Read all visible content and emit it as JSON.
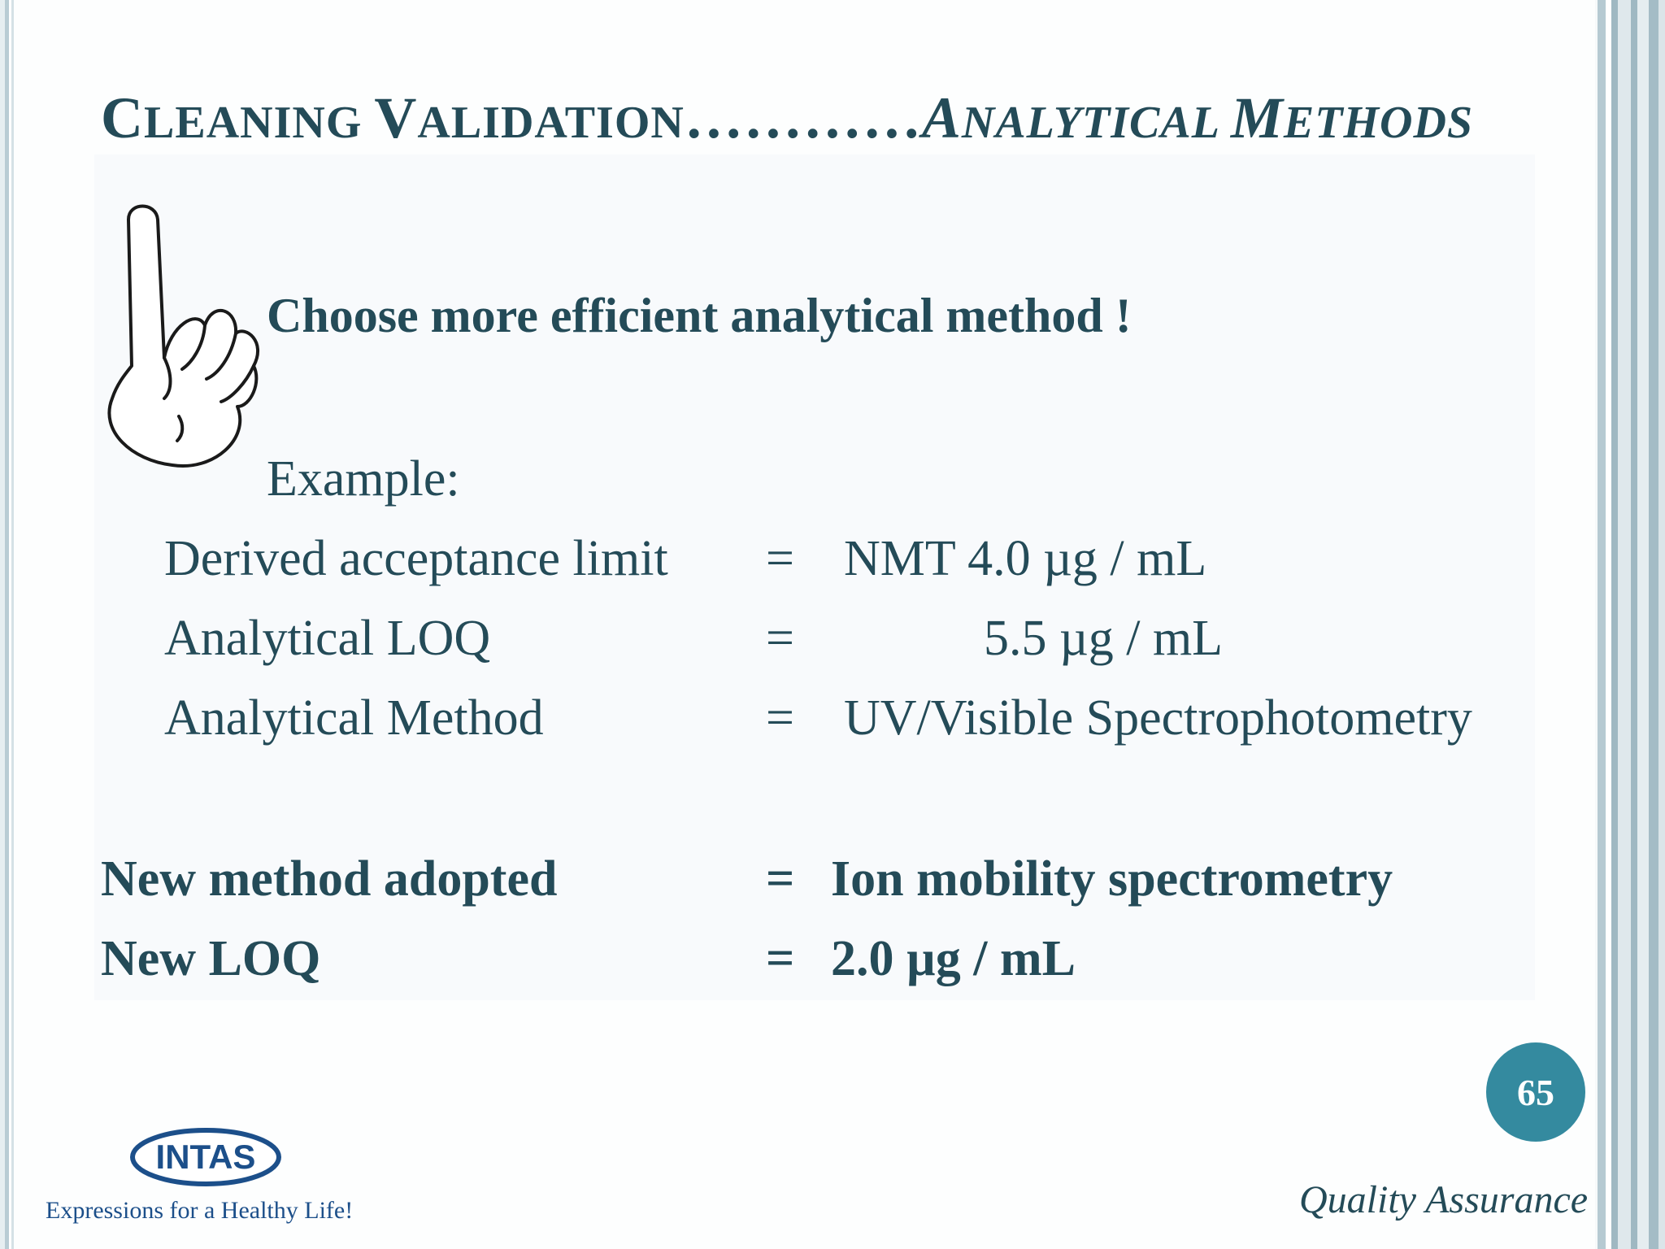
{
  "title": {
    "part1_first": "C",
    "part1_rest": "LEANING ",
    "part2_first": "V",
    "part2_rest": "ALIDATION",
    "dots": "…………",
    "part3_first": "A",
    "part3_rest": "NALYTICAL ",
    "part4_first": "M",
    "part4_rest": "ETHODS"
  },
  "icons": {
    "hand": "pointing-finger-icon",
    "logo": "intas-logo"
  },
  "heading": "Choose more efficient analytical method !",
  "example_label": "Example:",
  "example_rows": [
    {
      "label": "Derived acceptance limit",
      "eq": "=",
      "value": "NMT 4.0 µg / mL"
    },
    {
      "label": "Analytical LOQ",
      "eq": "=",
      "value": "5.5 µg / mL"
    },
    {
      "label": "Analytical Method",
      "eq": "=",
      "value": "UV/Visible Spectrophotometry"
    }
  ],
  "new_rows": [
    {
      "label": "New method adopted",
      "eq": "=",
      "value": "Ion mobility spectrometry"
    },
    {
      "label": "New LOQ",
      "eq": "=",
      "value": "2.0 µg / mL"
    }
  ],
  "page_number": "65",
  "logo": {
    "text": "INTAS",
    "tagline": "Expressions for a Healthy Life!"
  },
  "footer": "Quality Assurance",
  "colors": {
    "text": "#244b58",
    "accent_circle": "#348a9f",
    "logo_blue": "#1c4f8a"
  }
}
